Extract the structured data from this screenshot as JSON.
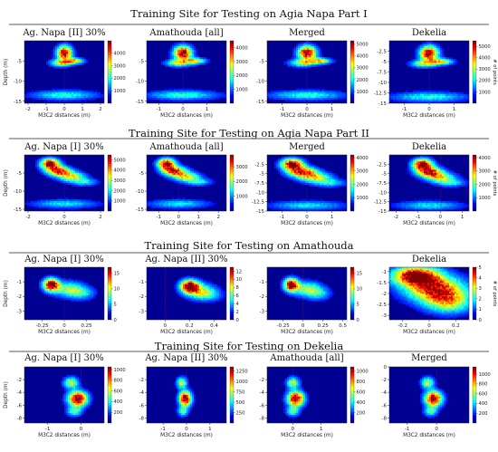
{
  "figure": {
    "sections": [
      {
        "title": "Training Site for Testing on Agia Napa Part I"
      },
      {
        "title": "Training Site for Testing on Agia Napa Part II"
      },
      {
        "title": "Training Site for Testing on Amathouda"
      },
      {
        "title": "Training Site for Testing on Dekelia"
      }
    ],
    "colormap": [
      "#00007f",
      "#0000ff",
      "#0080ff",
      "#00ffff",
      "#80ff80",
      "#ffff00",
      "#ff8000",
      "#ff0000",
      "#800000"
    ]
  },
  "chart_data": [
    {
      "type": "heatmap",
      "section": 0,
      "title": "Ag. Napa [II] 30%",
      "xlabel": "M3C2 distances (m)",
      "ylabel": "Depth (m)",
      "xlim": [
        -2.2,
        2.2
      ],
      "ylim": [
        -15.5,
        0
      ],
      "xticks": [
        -2,
        -1,
        0,
        1,
        2
      ],
      "yticks": [
        -5,
        -10,
        -15
      ],
      "cbar_ticks": [
        1000,
        2000,
        3000,
        4000
      ],
      "cbar_max": 5000,
      "cbar_label": "",
      "hotspots": [
        [
          0.0,
          -3.0,
          0.28,
          1.2,
          1.0
        ],
        [
          0.55,
          -5.0,
          0.35,
          0.5,
          0.6
        ],
        [
          -0.2,
          -5.5,
          0.4,
          0.6,
          0.55
        ],
        [
          0.0,
          -13.5,
          1.2,
          0.8,
          0.35
        ]
      ]
    },
    {
      "type": "heatmap",
      "section": 0,
      "title": "Amathouda [all]",
      "xlabel": "M3C2 distances (m)",
      "ylabel": "",
      "xlim": [
        -1.5,
        1.8
      ],
      "ylim": [
        -15.5,
        0
      ],
      "xticks": [
        -1,
        0,
        1
      ],
      "yticks": [
        -5,
        -10,
        -15
      ],
      "cbar_ticks": [
        1000,
        2000,
        3000,
        4000
      ],
      "cbar_max": 4500,
      "cbar_label": "",
      "hotspots": [
        [
          0.0,
          -3.0,
          0.25,
          1.2,
          1.0
        ],
        [
          0.5,
          -5.0,
          0.3,
          0.5,
          0.6
        ],
        [
          -0.2,
          -5.5,
          0.35,
          0.6,
          0.5
        ],
        [
          0.0,
          -13.5,
          1.0,
          0.8,
          0.35
        ]
      ]
    },
    {
      "type": "heatmap",
      "section": 0,
      "title": "Merged",
      "xlabel": "M3C2 distances (m)",
      "ylabel": "",
      "xlim": [
        -1.6,
        1.6
      ],
      "ylim": [
        -15.5,
        0
      ],
      "xticks": [
        -1,
        0,
        1
      ],
      "yticks": [
        -5,
        -10,
        -15
      ],
      "cbar_ticks": [
        1000,
        2000,
        3000,
        4000,
        5000
      ],
      "cbar_max": 5300,
      "cbar_label": "",
      "hotspots": [
        [
          0.0,
          -3.0,
          0.25,
          1.2,
          1.0
        ],
        [
          0.5,
          -5.0,
          0.3,
          0.5,
          0.6
        ],
        [
          -0.2,
          -5.5,
          0.35,
          0.6,
          0.5
        ],
        [
          0.0,
          -13.5,
          1.0,
          0.8,
          0.35
        ]
      ]
    },
    {
      "type": "heatmap",
      "section": 0,
      "title": "Dekelia",
      "xlabel": "M3C2 distances (m)",
      "ylabel": "",
      "xlim": [
        -1.6,
        1.6
      ],
      "ylim": [
        -15,
        0
      ],
      "xticks": [
        -1,
        0,
        1
      ],
      "yticks": [
        -2.5,
        -5.0,
        -7.5,
        -10.0,
        -12.5,
        -15.0
      ],
      "cbar_ticks": [
        1000,
        2000,
        3000,
        4000,
        5000
      ],
      "cbar_max": 5500,
      "cbar_label": "# of points",
      "hotspots": [
        [
          0.0,
          -3.0,
          0.25,
          1.2,
          1.0
        ],
        [
          0.5,
          -5.0,
          0.3,
          0.5,
          0.6
        ],
        [
          -0.2,
          -5.5,
          0.35,
          0.6,
          0.5
        ],
        [
          0.0,
          -13.5,
          1.0,
          0.8,
          0.35
        ]
      ]
    },
    {
      "type": "heatmap",
      "section": 1,
      "title": "Ag. Napa [I] 30%",
      "xlabel": "M3C2 distances (m)",
      "ylabel": "Depth (m)",
      "xlim": [
        -2.2,
        2.2
      ],
      "ylim": [
        -15.5,
        0
      ],
      "xticks": [
        -2,
        0,
        2
      ],
      "yticks": [
        -5,
        -10,
        -15
      ],
      "cbar_ticks": [
        1000,
        2000,
        3000,
        4000,
        5000
      ],
      "cbar_max": 5500,
      "cbar_label": "",
      "hotspots": [
        [
          -0.8,
          -2.5,
          0.35,
          1.0,
          1.0
        ],
        [
          -0.3,
          -4.5,
          0.45,
          0.9,
          0.8
        ],
        [
          0.4,
          -6.0,
          0.5,
          0.9,
          0.55
        ],
        [
          1.1,
          -7.5,
          0.5,
          0.7,
          0.3
        ],
        [
          0.0,
          -13.5,
          1.2,
          0.8,
          0.3
        ]
      ]
    },
    {
      "type": "heatmap",
      "section": 1,
      "title": "Amathouda [all]",
      "xlabel": "M3C2 distances (m)",
      "ylabel": "",
      "xlim": [
        -1.6,
        2.4
      ],
      "ylim": [
        -15.5,
        0
      ],
      "xticks": [
        -1,
        0,
        1,
        2
      ],
      "yticks": [
        -5,
        -10,
        -15
      ],
      "cbar_ticks": [
        1000,
        2000,
        3000
      ],
      "cbar_max": 3800,
      "cbar_label": "",
      "hotspots": [
        [
          -0.6,
          -2.5,
          0.3,
          1.0,
          1.0
        ],
        [
          -0.2,
          -4.5,
          0.4,
          0.9,
          0.8
        ],
        [
          0.4,
          -6.0,
          0.45,
          0.9,
          0.55
        ],
        [
          1.0,
          -7.5,
          0.45,
          0.7,
          0.3
        ],
        [
          0.0,
          -13.5,
          1.0,
          0.8,
          0.3
        ]
      ]
    },
    {
      "type": "heatmap",
      "section": 1,
      "title": "Merged",
      "xlabel": "M3C2 distances (m)",
      "ylabel": "",
      "xlim": [
        -1.6,
        1.6
      ],
      "ylim": [
        -15,
        0
      ],
      "xticks": [
        -1,
        0,
        1
      ],
      "yticks": [
        -2.5,
        -5.0,
        -7.5,
        -10.0,
        -12.5,
        -15.0
      ],
      "cbar_ticks": [
        1000,
        2000,
        3000,
        4000
      ],
      "cbar_max": 4200,
      "cbar_label": "",
      "hotspots": [
        [
          -0.6,
          -2.5,
          0.3,
          1.0,
          1.0
        ],
        [
          -0.2,
          -4.5,
          0.4,
          0.9,
          0.8
        ],
        [
          0.3,
          -6.0,
          0.45,
          0.9,
          0.55
        ],
        [
          0.9,
          -7.5,
          0.45,
          0.7,
          0.3
        ],
        [
          0.0,
          -13.5,
          1.0,
          0.8,
          0.3
        ]
      ]
    },
    {
      "type": "heatmap",
      "section": 1,
      "title": "Dekelia",
      "xlabel": "M3C2 distances (m)",
      "ylabel": "",
      "xlim": [
        -2.3,
        1.3
      ],
      "ylim": [
        -15,
        0
      ],
      "xticks": [
        -2,
        -1,
        0,
        1
      ],
      "yticks": [
        -2.5,
        -5.0,
        -7.5,
        -10.0,
        -12.5,
        -15.0
      ],
      "cbar_ticks": [
        1000,
        2000,
        3000,
        4000
      ],
      "cbar_max": 4200,
      "cbar_label": "# of points",
      "hotspots": [
        [
          -0.8,
          -2.5,
          0.3,
          1.0,
          1.0
        ],
        [
          -0.5,
          -4.5,
          0.4,
          0.9,
          0.8
        ],
        [
          0.0,
          -6.0,
          0.45,
          0.9,
          0.55
        ],
        [
          0.5,
          -7.5,
          0.45,
          0.7,
          0.3
        ],
        [
          -0.5,
          -13.5,
          1.0,
          0.8,
          0.3
        ]
      ]
    },
    {
      "type": "heatmap",
      "section": 2,
      "title": "Ag. Napa [I] 30%",
      "xlabel": "M3C2 distances (m)",
      "ylabel": "Depth (m)",
      "xlim": [
        -0.45,
        0.45
      ],
      "ylim": [
        -3.6,
        0
      ],
      "xticks": [
        -0.25,
        0.0,
        0.25
      ],
      "yticks": [
        -1,
        -2,
        -3
      ],
      "cbar_ticks": [
        0,
        5,
        10,
        15
      ],
      "cbar_max": 17,
      "cbar_label": "",
      "hotspots": [
        [
          -0.15,
          -1.2,
          0.06,
          0.3,
          1.0
        ],
        [
          0.05,
          -1.5,
          0.12,
          0.35,
          0.45
        ],
        [
          0.2,
          -1.8,
          0.1,
          0.3,
          0.25
        ]
      ]
    },
    {
      "type": "heatmap",
      "section": 2,
      "title": "Ag. Napa [II] 30%",
      "xlabel": "M3C2 distances (m)",
      "ylabel": "",
      "xlim": [
        -0.15,
        0.5
      ],
      "ylim": [
        -3.6,
        0
      ],
      "xticks": [
        0.0,
        0.2,
        0.4
      ],
      "yticks": [
        -1,
        -2,
        -3
      ],
      "cbar_ticks": [
        0,
        2,
        4,
        6,
        8,
        10,
        12
      ],
      "cbar_max": 13,
      "cbar_label": "",
      "hotspots": [
        [
          0.2,
          -1.3,
          0.05,
          0.3,
          1.0
        ],
        [
          0.28,
          -1.6,
          0.08,
          0.35,
          0.45
        ],
        [
          0.35,
          -1.9,
          0.08,
          0.3,
          0.25
        ]
      ]
    },
    {
      "type": "heatmap",
      "section": 2,
      "title": "",
      "xlabel": "M3C2 distances (m)",
      "ylabel": "",
      "xlim": [
        -0.45,
        0.55
      ],
      "ylim": [
        -3.6,
        0
      ],
      "xticks": [
        -0.25,
        0.0,
        0.25,
        0.5
      ],
      "yticks": [
        -1,
        -2,
        -3
      ],
      "cbar_ticks": [
        0,
        5,
        10,
        15
      ],
      "cbar_max": 17,
      "cbar_label": "",
      "hotspots": [
        [
          -0.15,
          -1.2,
          0.06,
          0.3,
          1.0
        ],
        [
          0.05,
          -1.5,
          0.12,
          0.35,
          0.45
        ],
        [
          0.2,
          -1.8,
          0.1,
          0.3,
          0.25
        ]
      ]
    },
    {
      "type": "heatmap",
      "section": 2,
      "title": "Dekelia",
      "xlabel": "M3C2 distances (m)",
      "ylabel": "",
      "xlim": [
        -0.3,
        0.3
      ],
      "ylim": [
        -3.2,
        -0.8
      ],
      "xticks": [
        -0.2,
        0.0,
        0.2
      ],
      "yticks": [
        -1.0,
        -1.5,
        -2.0,
        -2.5,
        -3.0
      ],
      "cbar_ticks": [
        0,
        1,
        2,
        3,
        4,
        5
      ],
      "cbar_max": 5,
      "cbar_label": "# of points",
      "hotspots": [
        [
          -0.1,
          -1.2,
          0.12,
          0.3,
          1.0
        ],
        [
          0.05,
          -1.8,
          0.15,
          0.4,
          0.8
        ],
        [
          0.15,
          -2.4,
          0.12,
          0.35,
          0.5
        ]
      ]
    },
    {
      "type": "heatmap",
      "section": 3,
      "title": "Ag. Napa [I] 30%",
      "xlabel": "M3C2 distances (m)",
      "ylabel": "Depth (m)",
      "xlim": [
        -1.7,
        0.7
      ],
      "ylim": [
        -8.8,
        0
      ],
      "xticks": [
        -1,
        0
      ],
      "yticks": [
        -2,
        -4,
        -6,
        -8
      ],
      "cbar_ticks": [
        200,
        400,
        600,
        800,
        1000
      ],
      "cbar_max": 1050,
      "cbar_label": "",
      "hotspots": [
        [
          -0.3,
          -2.5,
          0.15,
          0.6,
          0.5
        ],
        [
          -0.1,
          -5.0,
          0.2,
          0.8,
          1.0
        ],
        [
          -0.2,
          -7.0,
          0.15,
          0.5,
          0.4
        ]
      ]
    },
    {
      "type": "heatmap",
      "section": 3,
      "title": "Ag. Napa [II] 30%",
      "xlabel": "M3C2 distances (m)",
      "ylabel": "",
      "xlim": [
        -1.7,
        1.7
      ],
      "ylim": [
        -8.8,
        0
      ],
      "xticks": [
        -1,
        0,
        1
      ],
      "yticks": [
        -2,
        -4,
        -6,
        -8
      ],
      "cbar_ticks": [
        250,
        500,
        750,
        1000,
        1250
      ],
      "cbar_max": 1350,
      "cbar_label": "",
      "hotspots": [
        [
          -0.2,
          -2.5,
          0.15,
          0.6,
          0.5
        ],
        [
          -0.05,
          -5.0,
          0.18,
          0.8,
          1.0
        ],
        [
          -0.15,
          -7.0,
          0.15,
          0.5,
          0.4
        ]
      ]
    },
    {
      "type": "heatmap",
      "section": 3,
      "title": "Amathouda [all]",
      "xlabel": "M3C2 distances (m)",
      "ylabel": "",
      "xlim": [
        -0.9,
        1.9
      ],
      "ylim": [
        -8.8,
        0
      ],
      "xticks": [
        0,
        1
      ],
      "yticks": [
        -2,
        -4,
        -6,
        -8
      ],
      "cbar_ticks": [
        200,
        400,
        600,
        800,
        1000
      ],
      "cbar_max": 1080,
      "cbar_label": "",
      "hotspots": [
        [
          0.0,
          -2.5,
          0.15,
          0.6,
          0.5
        ],
        [
          0.1,
          -5.0,
          0.2,
          0.8,
          1.0
        ],
        [
          0.0,
          -7.0,
          0.15,
          0.5,
          0.4
        ]
      ]
    },
    {
      "type": "heatmap",
      "section": 3,
      "title": "Merged",
      "xlabel": "M3C2 distances (m)",
      "ylabel": "",
      "xlim": [
        -1.6,
        1.1
      ],
      "ylim": [
        -8.8,
        0
      ],
      "xticks": [
        -1,
        0
      ],
      "yticks": [
        0,
        -2,
        -4,
        -6,
        -8
      ],
      "cbar_ticks": [
        200,
        400,
        600,
        800,
        1000
      ],
      "cbar_max": 1150,
      "cbar_label": "",
      "hotspots": [
        [
          -0.3,
          -2.5,
          0.15,
          0.6,
          0.5
        ],
        [
          -0.1,
          -5.0,
          0.2,
          0.8,
          1.0
        ],
        [
          -0.2,
          -7.0,
          0.15,
          0.5,
          0.4
        ]
      ]
    }
  ]
}
